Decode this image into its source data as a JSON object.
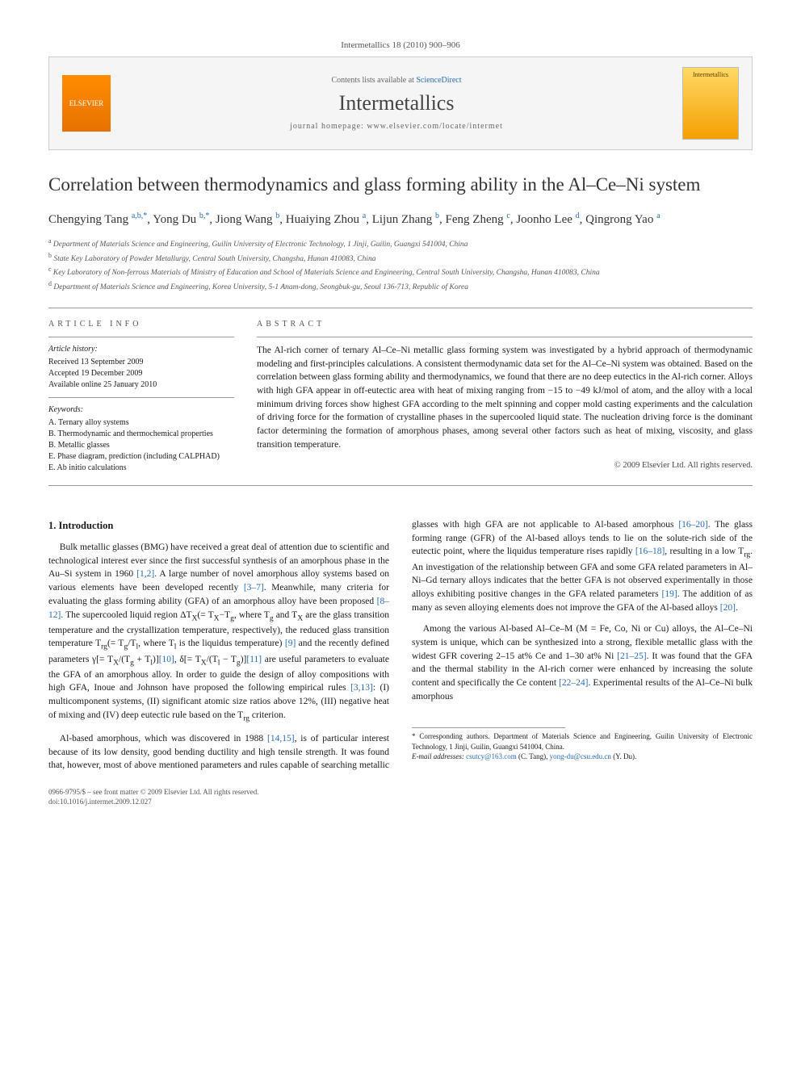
{
  "page_header": "Intermetallics 18 (2010) 900–906",
  "banner": {
    "contents_prefix": "Contents lists available at ",
    "contents_link": "ScienceDirect",
    "journal_name": "Intermetallics",
    "homepage": "journal homepage: www.elsevier.com/locate/intermet",
    "elsevier_label": "ELSEVIER",
    "cover_label": "Intermetallics"
  },
  "title": "Correlation between thermodynamics and glass forming ability in the Al–Ce–Ni system",
  "authors_html": "Chengying Tang <sup>a,b,*</sup>, Yong Du <sup>b,*</sup>, Jiong Wang <sup>b</sup>, Huaiying Zhou <sup>a</sup>, Lijun Zhang <sup>b</sup>, Feng Zheng <sup>c</sup>, Joonho Lee <sup>d</sup>, Qingrong Yao <sup>a</sup>",
  "affiliations": [
    "a Department of Materials Science and Engineering, Guilin University of Electronic Technology, 1 Jinji, Guilin, Guangxi 541004, China",
    "b State Key Laboratory of Powder Metallurgy, Central South University, Changsha, Hunan 410083, China",
    "c Key Laboratory of Non-ferrous Materials of Ministry of Education and School of Materials Science and Engineering, Central South University, Changsha, Hunan 410083, China",
    "d Department of Materials Science and Engineering, Korea University, 5-1 Anam-dong, Seongbuk-gu, Seoul 136-713, Republic of Korea"
  ],
  "article_info": {
    "heading": "ARTICLE INFO",
    "history_label": "Article history:",
    "history": [
      "Received 13 September 2009",
      "Accepted 19 December 2009",
      "Available online 25 January 2010"
    ],
    "keywords_label": "Keywords:",
    "keywords": [
      "A. Ternary alloy systems",
      "B. Thermodynamic and thermochemical properties",
      "B. Metallic glasses",
      "E. Phase diagram, prediction (including CALPHAD)",
      "E. Ab initio calculations"
    ]
  },
  "abstract": {
    "heading": "ABSTRACT",
    "text": "The Al-rich corner of ternary Al–Ce–Ni metallic glass forming system was investigated by a hybrid approach of thermodynamic modeling and first-principles calculations. A consistent thermodynamic data set for the Al–Ce–Ni system was obtained. Based on the correlation between glass forming ability and thermodynamics, we found that there are no deep eutectics in the Al-rich corner. Alloys with high GFA appear in off-eutectic area with heat of mixing ranging from −15 to −49 kJ/mol of atom, and the alloy with a local minimum driving forces show highest GFA according to the melt spinning and copper mold casting experiments and the calculation of driving force for the formation of crystalline phases in the supercooled liquid state. The nucleation driving force is the dominant factor determining the formation of amorphous phases, among several other factors such as heat of mixing, viscosity, and glass transition temperature.",
    "copyright": "© 2009 Elsevier Ltd. All rights reserved."
  },
  "intro_heading": "1. Introduction",
  "paragraphs": [
    "Bulk metallic glasses (BMG) have received a great deal of attention due to scientific and technological interest ever since the first successful synthesis of an amorphous phase in the Au–Si system in 1960 <span class=\"ref\">[1,2]</span>. A large number of novel amorphous alloy systems based on various elements have been developed recently <span class=\"ref\">[3–7]</span>. Meanwhile, many criteria for evaluating the glass forming ability (GFA) of an amorphous alloy have been proposed <span class=\"ref\">[8–12]</span>. The supercooled liquid region ΔT<sub>X</sub>(= T<sub>X</sub>−T<sub>g</sub>, where T<sub>g</sub> and T<sub>X</sub> are the glass transition temperature and the crystallization temperature, respectively), the reduced glass transition temperature T<sub>rg</sub>(= T<sub>g</sub>/T<sub>l</sub>, where T<sub>l</sub> is the liquidus temperature) <span class=\"ref\">[9]</span> and the recently defined parameters γ[= T<sub>X</sub>/(T<sub>g</sub> + T<sub>l</sub>)]<span class=\"ref\">[10]</span>, δ[= T<sub>X</sub>/(T<sub>l</sub> − T<sub>g</sub>)]<span class=\"ref\">[11]</span> are useful parameters to evaluate the GFA of an amorphous alloy. In order to guide the design of alloy compositions with high GFA, Inoue and Johnson have proposed the following empirical rules <span class=\"ref\">[3,13]</span>: (I) multicomponent systems, (II) significant atomic size ratios above 12%, (III) negative heat of mixing and (IV) deep eutectic rule based on the T<sub>rg</sub> criterion.",
    "Al-based amorphous, which was discovered in 1988 <span class=\"ref\">[14,15]</span>, is of particular interest because of its low density, good bending ductility and high tensile strength. It was found that, however, most of above mentioned parameters and rules capable of searching metallic glasses with high GFA are not applicable to Al-based amorphous <span class=\"ref\">[16–20]</span>. The glass forming range (GFR) of the Al-based alloys tends to lie on the solute-rich side of the eutectic point, where the liquidus temperature rises rapidly <span class=\"ref\">[16–18]</span>, resulting in a low T<sub>rg</sub>. An investigation of the relationship between GFA and some GFA related parameters in Al–Ni–Gd ternary alloys indicates that the better GFA is not observed experimentally in those alloys exhibiting positive changes in the GFA related parameters <span class=\"ref\">[19]</span>. The addition of as many as seven alloying elements does not improve the GFA of the Al-based alloys <span class=\"ref\">[20]</span>.",
    "Among the various Al-based Al–Ce–M (M = Fe, Co, Ni or Cu) alloys, the Al–Ce–Ni system is unique, which can be synthesized into a strong, flexible metallic glass with the widest GFR covering 2–15 at% Ce and 1–30 at% Ni <span class=\"ref\">[21–25]</span>. It was found that the GFA and the thermal stability in the Al-rich corner were enhanced by increasing the solute content and specifically the Ce content <span class=\"ref\">[22–24]</span>. Experimental results of the Al–Ce–Ni bulk amorphous"
  ],
  "footnote": {
    "text": "* Corresponding authors. Department of Materials Science and Engineering, Guilin University of Electronic Technology, 1 Jinji, Guilin, Guangxi 541004, China.",
    "emails_label": "E-mail addresses:",
    "email1": "csutcy@163.com",
    "email1_who": "(C. Tang),",
    "email2": "yong-du@csu.edu.cn",
    "email2_who": "(Y. Du)."
  },
  "footer": {
    "line1": "0966-9795/$ – see front matter © 2009 Elsevier Ltd. All rights reserved.",
    "line2": "doi:10.1016/j.intermet.2009.12.027"
  },
  "colors": {
    "link": "#2a6db5",
    "text": "#1a1a1a",
    "muted": "#555555",
    "rule": "#999999",
    "banner_bg": "#f5f5f5",
    "elsevier": "#ff8c00"
  }
}
